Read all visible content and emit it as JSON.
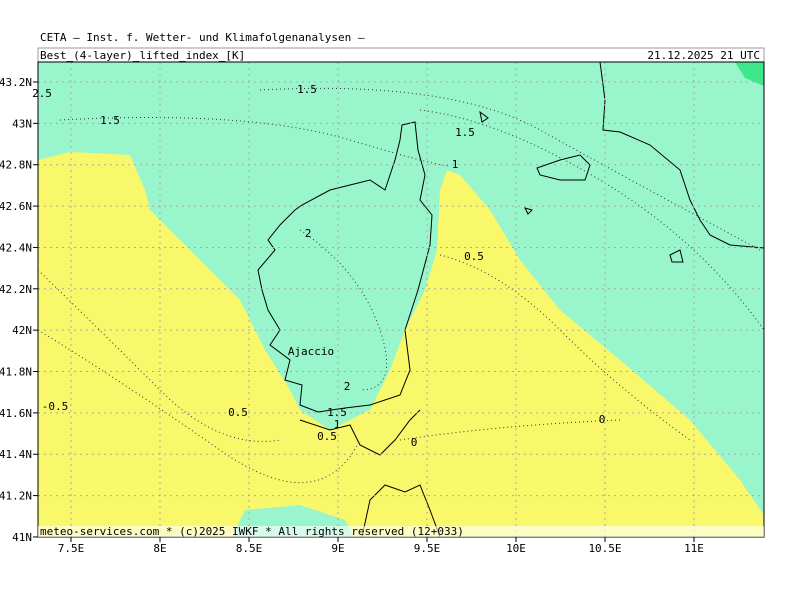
{
  "header": {
    "institute": "CETA — Inst. f. Wetter- und Klimafolgenanalysen —",
    "field": "Best_(4-layer)_lifted_index_[K]",
    "valid_time": "21.12.2025 21 UTC"
  },
  "map": {
    "lat_labels": [
      "43.2N",
      "43N",
      "42.8N",
      "42.6N",
      "42.4N",
      "42.2N",
      "42N",
      "41.8N",
      "41.6N",
      "41.4N",
      "41.2N",
      "41N"
    ],
    "lon_labels": [
      "7.5E",
      "8E",
      "8.5E",
      "9E",
      "9.5E",
      "10E",
      "10.5E",
      "11E"
    ],
    "contour_labels": [
      "2.5",
      "1.5",
      "1.5",
      "1.5",
      "1",
      "2",
      "0.5",
      "2",
      "1.5",
      "1",
      "0.5",
      "0.5",
      "-0.5",
      "0",
      "0"
    ],
    "place": "Ajaccio"
  },
  "footer": "meteo-services.com * (c)2025 IWKF * All rights reserved (12+033)"
}
